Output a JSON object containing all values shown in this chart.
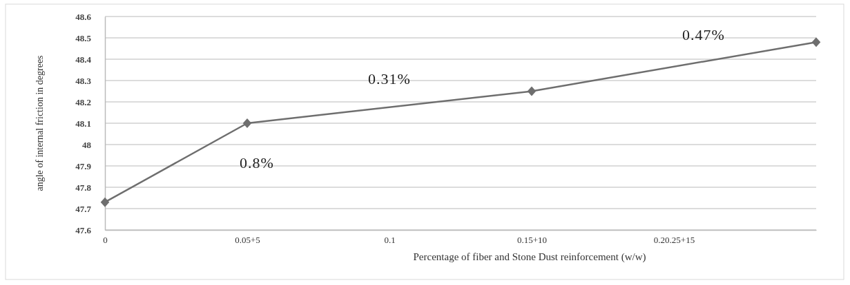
{
  "chart_data": {
    "type": "line",
    "xlabel": "Percentage of fiber and Stone Dust reinforcement (w/w)",
    "ylabel": "angle of internal friction in degrees",
    "categories": [
      "0",
      "0.05+5",
      "0.1",
      "0.15+10",
      "0.20.25+15",
      null
    ],
    "series": [
      {
        "color": "#6e6e6e",
        "values": [
          47.73,
          48.1,
          null,
          48.25,
          null,
          48.48
        ]
      }
    ],
    "ylim": [
      47.6,
      48.6
    ],
    "yticks": [
      47.6,
      47.7,
      47.8,
      47.9,
      48,
      48.1,
      48.2,
      48.3,
      48.4,
      48.5,
      48.6
    ],
    "grid": "y",
    "marker": "diamond",
    "line_style": "solid",
    "annotations": [
      "0.8%",
      "0.31%",
      "0.47%"
    ]
  }
}
